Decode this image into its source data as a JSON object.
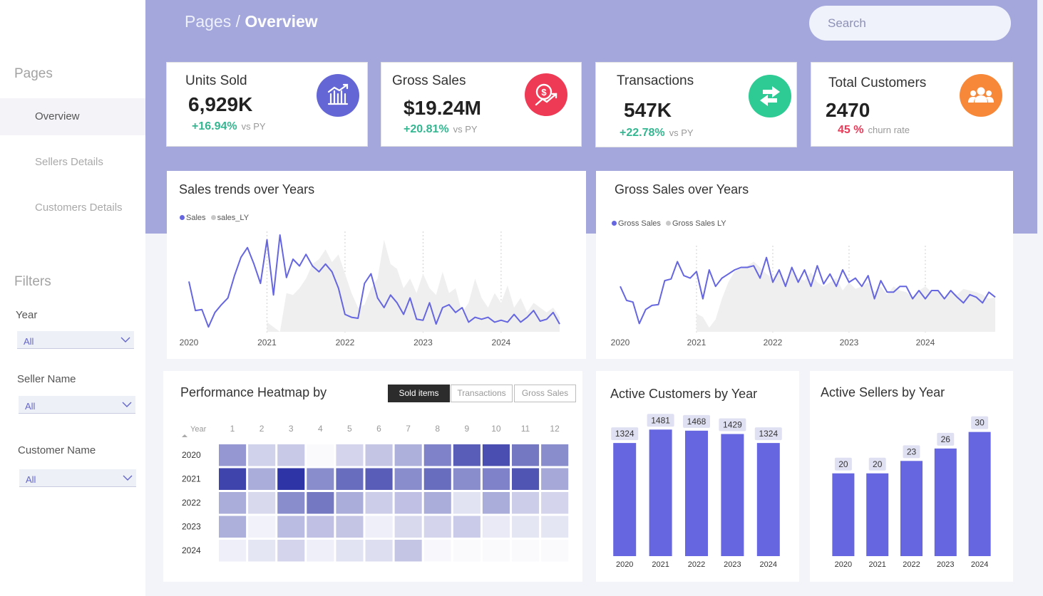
{
  "nav": {
    "section_title": "Pages",
    "items": [
      {
        "label": "Overview"
      },
      {
        "label": "Sellers Details"
      },
      {
        "label": "Customers Details"
      }
    ]
  },
  "filters": {
    "section_title": "Filters",
    "year": {
      "label": "Year",
      "value": "All"
    },
    "seller": {
      "label": "Seller Name",
      "value": "All"
    },
    "customer": {
      "label": "Customer Name",
      "value": "All"
    }
  },
  "header": {
    "breadcrumb_root": "Pages",
    "breadcrumb_sep": " / ",
    "breadcrumb_current": "Overview",
    "search_placeholder": "Search"
  },
  "kpis": [
    {
      "label": "Units Sold",
      "value": "6,929K",
      "delta": "+16.94%",
      "delta_sub": "vs PY",
      "icon": "bar-chart-up-icon",
      "icon_color": "#6466d6"
    },
    {
      "label": "Gross Sales",
      "value": "$19.24M",
      "delta": "+20.81%",
      "delta_sub": "vs PY",
      "icon": "dollar-trend-icon",
      "icon_color": "#ee3a54"
    },
    {
      "label": "Transactions",
      "value": "547K",
      "delta": "+22.78%",
      "delta_sub": "vs PY",
      "icon": "exchange-arrows-icon",
      "icon_color": "#2ecb94"
    },
    {
      "label": "Total Customers",
      "value": "2470",
      "delta": "45 %",
      "delta_sub": "churn rate",
      "icon": "people-group-icon",
      "icon_color": "#f7883a"
    }
  ],
  "colors": {
    "accent": "#6566e0",
    "header": "#a3a7db",
    "area": "#efefef",
    "heat_base": "#2a2fa3"
  },
  "sales_trend": {
    "title": "Sales trends over Years",
    "legend": [
      {
        "label": "Sales",
        "color": "#6566e0"
      },
      {
        "label": "sales_LY",
        "color": "#c8c8c8"
      }
    ],
    "chart_data": {
      "type": "line",
      "x_tick_labels": [
        "2020",
        "2021",
        "2022",
        "2023",
        "2024"
      ],
      "ylim": [
        0,
        100
      ],
      "series": [
        {
          "name": "Sales",
          "values": [
            52,
            22,
            23,
            5,
            20,
            28,
            35,
            58,
            77,
            87,
            70,
            50,
            95,
            38,
            100,
            56,
            75,
            68,
            80,
            68,
            62,
            70,
            62,
            45,
            18,
            15,
            14,
            50,
            60,
            35,
            25,
            38,
            30,
            18,
            35,
            13,
            12,
            30,
            8,
            25,
            28,
            20,
            25,
            10,
            15,
            13,
            15,
            10,
            12,
            10,
            18,
            10,
            15,
            22,
            11,
            13,
            20,
            8
          ]
        },
        {
          "name": "sales_LY",
          "start_index": 12,
          "values": [
            10,
            5,
            0,
            40,
            38,
            45,
            55,
            70,
            75,
            85,
            72,
            80,
            60,
            40,
            25,
            28,
            45,
            55,
            95,
            70,
            65,
            45,
            55,
            40,
            60,
            45,
            38,
            62,
            40,
            45,
            20,
            30,
            55,
            35,
            25,
            40,
            30,
            48,
            25,
            35,
            20,
            30,
            25,
            20,
            25,
            15
          ]
        }
      ]
    }
  },
  "gross_trend": {
    "title": "Gross Sales over Years",
    "legend": [
      {
        "label": "Gross Sales",
        "color": "#6566e0"
      },
      {
        "label": "Gross Sales LY",
        "color": "#c8c8c8"
      }
    ],
    "chart_data": {
      "type": "line",
      "x_tick_labels": [
        "2020",
        "2021",
        "2022",
        "2023",
        "2024"
      ],
      "ylim": [
        0,
        100
      ],
      "series": [
        {
          "name": "Gross Sales",
          "values": [
            55,
            38,
            36,
            10,
            27,
            32,
            33,
            62,
            64,
            85,
            68,
            65,
            73,
            40,
            75,
            55,
            65,
            70,
            75,
            78,
            78,
            80,
            65,
            90,
            60,
            75,
            55,
            78,
            60,
            75,
            55,
            80,
            58,
            70,
            55,
            75,
            60,
            65,
            55,
            68,
            40,
            62,
            48,
            48,
            55,
            55,
            40,
            50,
            40,
            50,
            50,
            40,
            50,
            42,
            35,
            45,
            42,
            35,
            48,
            42
          ]
        },
        {
          "name": "Gross Sales LY",
          "start_index": 12,
          "values": [
            22,
            18,
            5,
            15,
            40,
            60,
            73,
            78,
            80,
            85,
            78,
            70,
            65,
            75,
            60,
            78,
            65,
            62,
            72,
            60,
            55,
            60,
            65,
            50,
            60,
            52,
            55,
            60,
            48,
            55,
            45,
            55,
            50,
            48,
            42,
            50,
            55,
            48,
            50,
            40,
            48,
            45,
            52,
            50,
            48,
            45,
            40,
            42
          ]
        }
      ]
    }
  },
  "heatmap": {
    "title": "Performance Heatmap by",
    "tabs": [
      {
        "label": "Sold items",
        "active": true
      },
      {
        "label": "Transactions",
        "active": false
      },
      {
        "label": "Gross Sales",
        "active": false
      }
    ],
    "year_label": "Year",
    "columns": [
      "1",
      "2",
      "3",
      "4",
      "5",
      "6",
      "7",
      "8",
      "9",
      "10",
      "11",
      "12"
    ],
    "rows": [
      {
        "year": "2020",
        "values": [
          0.5,
          0.22,
          0.26,
          0.0,
          0.2,
          0.28,
          0.38,
          0.6,
          0.78,
          0.85,
          0.65,
          0.55
        ]
      },
      {
        "year": "2021",
        "values": [
          0.9,
          0.4,
          0.98,
          0.55,
          0.7,
          0.78,
          0.55,
          0.7,
          0.55,
          0.6,
          0.82,
          0.42
        ]
      },
      {
        "year": "2022",
        "values": [
          0.4,
          0.18,
          0.55,
          0.65,
          0.4,
          0.24,
          0.3,
          0.4,
          0.14,
          0.4,
          0.24,
          0.2
        ]
      },
      {
        "year": "2023",
        "values": [
          0.38,
          0.06,
          0.32,
          0.3,
          0.28,
          0.08,
          0.18,
          0.2,
          0.25,
          0.1,
          0.12,
          0.12
        ]
      },
      {
        "year": "2024",
        "values": [
          0.08,
          0.12,
          0.2,
          0.08,
          0.14,
          0.16,
          0.28,
          0.03,
          0.0,
          0.0,
          0.0,
          0.0
        ]
      }
    ]
  },
  "active_customers": {
    "title": "Active Customers by Year",
    "chart_data": {
      "type": "bar",
      "categories": [
        "2020",
        "2021",
        "2022",
        "2023",
        "2024"
      ],
      "values": [
        1324,
        1481,
        1468,
        1429,
        1324
      ],
      "ylim": [
        0,
        1550
      ]
    }
  },
  "active_sellers": {
    "title": "Active Sellers by Year",
    "chart_data": {
      "type": "bar",
      "categories": [
        "2020",
        "2021",
        "2022",
        "2023",
        "2024"
      ],
      "values": [
        20,
        20,
        23,
        26,
        30
      ],
      "ylim": [
        0,
        32
      ]
    }
  }
}
